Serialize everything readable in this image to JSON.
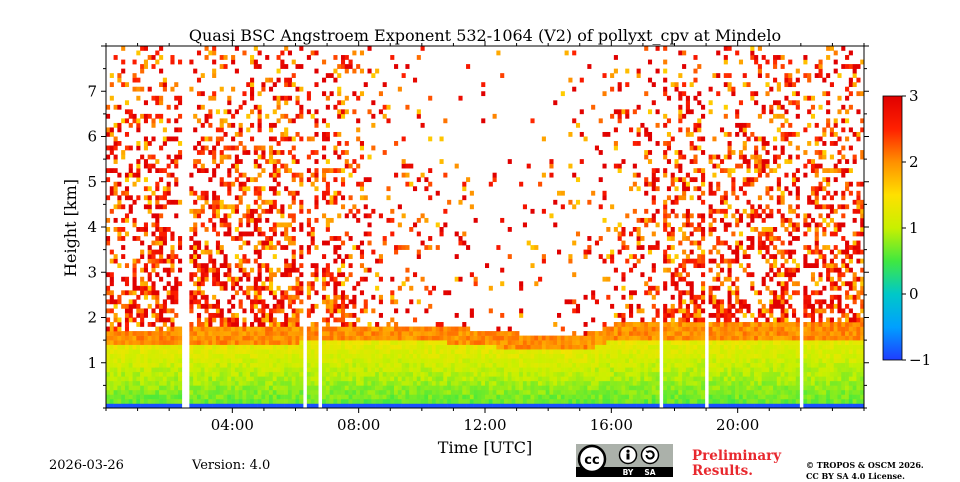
{
  "chart_data": {
    "type": "heatmap",
    "title": "Quasi BSC Angstroem Exponent 532-1064 (V2) of pollyxt_cpv at Mindelo",
    "xlabel": "Time [UTC]",
    "ylabel": "Height [km]",
    "xlim": [
      0,
      24
    ],
    "ylim": [
      0,
      8
    ],
    "x_ticks": [
      4,
      8,
      12,
      16,
      20
    ],
    "x_tick_labels": [
      "04:00",
      "08:00",
      "12:00",
      "16:00",
      "20:00"
    ],
    "y_ticks": [
      1,
      2,
      3,
      4,
      5,
      6,
      7
    ],
    "y_tick_labels": [
      "1",
      "2",
      "3",
      "4",
      "5",
      "6",
      "7"
    ],
    "colorbar": {
      "range": [
        -1,
        3
      ],
      "ticks": [
        -1,
        0,
        1,
        2,
        3
      ],
      "tick_labels": [
        "−1",
        "0",
        "1",
        "2",
        "3"
      ],
      "colors": [
        "#1f3cff",
        "#00a0ff",
        "#00c8c8",
        "#40e840",
        "#c8f000",
        "#ffe000",
        "#ff9000",
        "#ff2000",
        "#e00000"
      ]
    },
    "layers": {
      "boundary_layer_top_km": [
        [
          0,
          1.6
        ],
        [
          2,
          1.6
        ],
        [
          6,
          1.65
        ],
        [
          10,
          1.7
        ],
        [
          13,
          1.5
        ],
        [
          15,
          1.45
        ],
        [
          16,
          1.7
        ],
        [
          20,
          1.75
        ],
        [
          24,
          1.75
        ]
      ],
      "boundary_layer_value": 1.0,
      "boundary_layer_top_value": 2.0,
      "free_troposphere_value": 2.5,
      "sparse_data_period_utc": [
        7.5,
        17.5
      ]
    },
    "missing_data_periods_utc": [
      [
        2.4,
        2.6
      ],
      [
        6.2,
        6.4
      ],
      [
        6.7,
        6.8
      ],
      [
        17.5,
        17.6
      ],
      [
        19.0,
        19.1
      ],
      [
        22.0,
        22.1
      ]
    ]
  },
  "footer": {
    "date": "2026-03-26",
    "version": "Version: 4.0",
    "preliminary_line1": "Preliminary",
    "preliminary_line2": "Results.",
    "copyright_line1": "© TROPOS & OSCM 2026.",
    "copyright_line2": "CC BY SA 4.0 License.",
    "license_badge": {
      "cc": "cc",
      "by": "BY",
      "sa": "SA"
    }
  }
}
